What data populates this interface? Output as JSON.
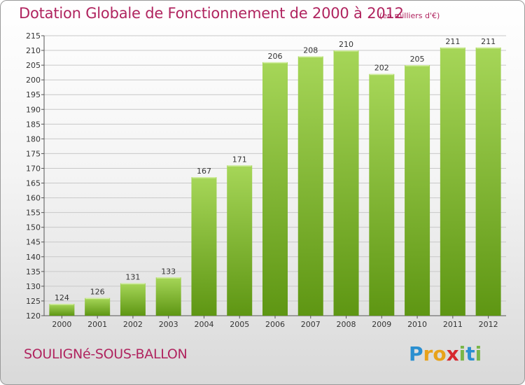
{
  "header": {
    "title": "Dotation Globale de Fonctionnement de 2000 à 2012",
    "subtitle": "(en milliers d'€)"
  },
  "footer": {
    "commune": "SOULIGNé-SOUS-BALLON",
    "logo_letters": [
      "P",
      "r",
      "o",
      "x",
      "i",
      "t",
      "i"
    ],
    "logo_colors": [
      "#2a8fd0",
      "#e8a21a",
      "#e8a21a",
      "#d7282f",
      "#7ab648",
      "#2a8fd0",
      "#7ab648"
    ]
  },
  "colors": {
    "bar_light": "#a6d658",
    "bar_dark": "#5e9613",
    "grid": "#c8c8c8",
    "title": "#b0245f"
  },
  "chart_data": {
    "type": "bar",
    "categories": [
      "2000",
      "2001",
      "2002",
      "2003",
      "2004",
      "2005",
      "2006",
      "2007",
      "2008",
      "2009",
      "2010",
      "2011",
      "2012"
    ],
    "values": [
      124,
      126,
      131,
      133,
      167,
      171,
      206,
      208,
      210,
      202,
      205,
      211,
      211
    ],
    "title": "Dotation Globale de Fonctionnement de 2000 à 2012",
    "subtitle": "(en milliers d'€)",
    "xlabel": "",
    "ylabel": "",
    "ylim": [
      120,
      215
    ],
    "yticks": [
      120,
      125,
      130,
      135,
      140,
      145,
      150,
      155,
      160,
      165,
      170,
      175,
      180,
      185,
      190,
      195,
      200,
      205,
      210,
      215
    ],
    "grid": true
  }
}
